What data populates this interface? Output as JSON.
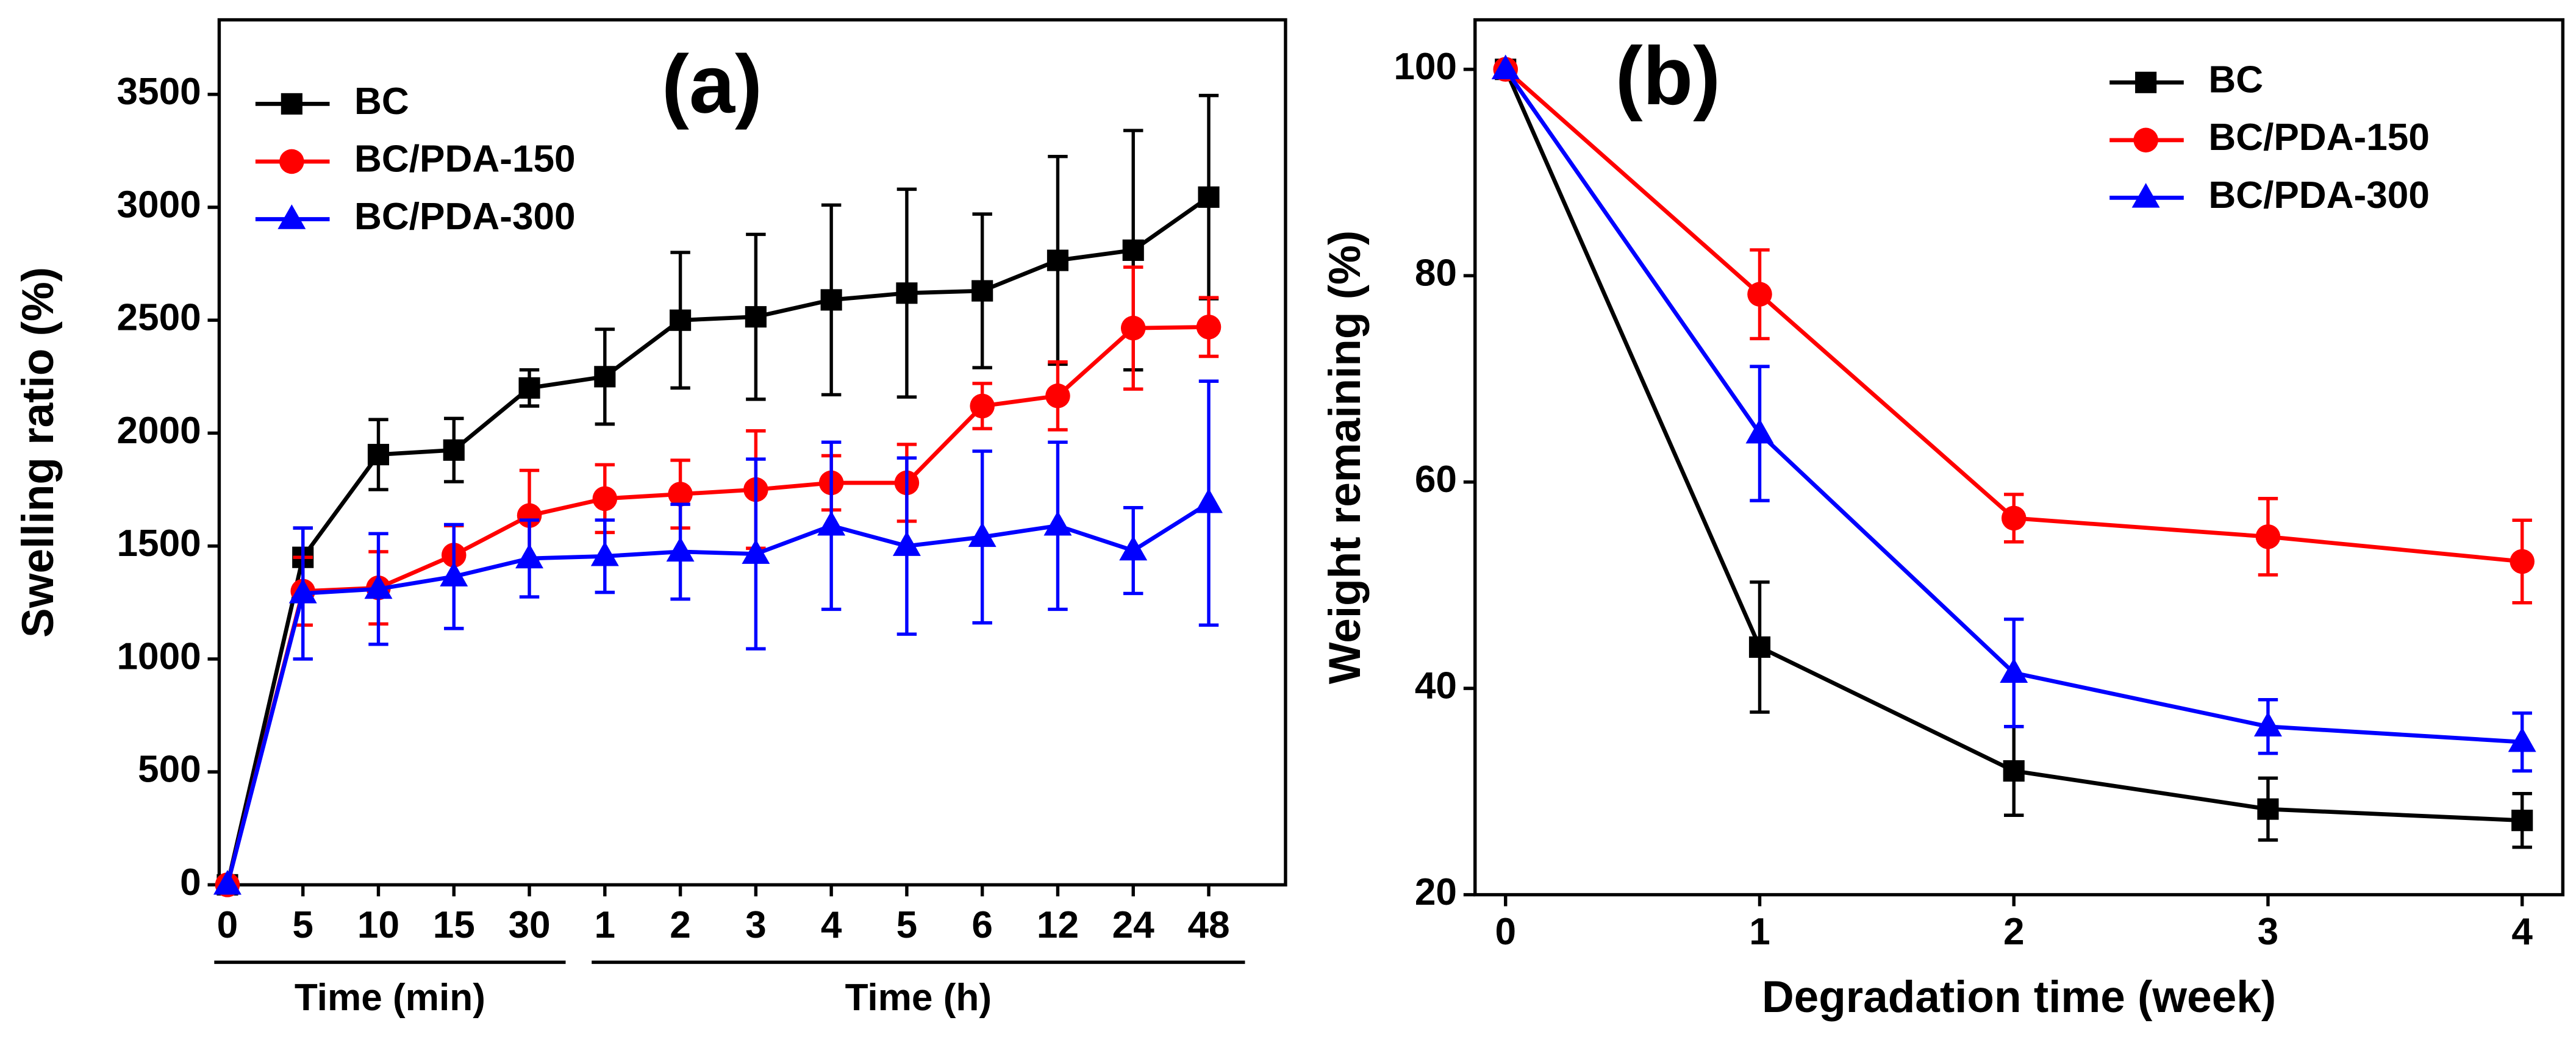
{
  "chart_data": [
    {
      "type": "line",
      "title": "(a)",
      "y_label": "Swelling ratio (%)",
      "categories": [
        "0",
        "5",
        "10",
        "15",
        "30",
        "1",
        "2",
        "3",
        "4",
        "5",
        "6",
        "12",
        "24",
        "48"
      ],
      "x_groups": [
        {
          "label": "Time (min)",
          "count": 5
        },
        {
          "label": "Time (h)",
          "count": 9
        }
      ],
      "ylim": [
        0,
        3830
      ],
      "yticks": [
        0,
        500,
        1000,
        1500,
        2000,
        2500,
        3000,
        3500
      ],
      "legend": "upper left",
      "series": [
        {
          "name": "BC",
          "color": "#000000",
          "marker": "square",
          "values": [
            0,
            1450,
            1905,
            1925,
            2200,
            2250,
            2500,
            2515,
            2590,
            2620,
            2630,
            2765,
            2810,
            3045
          ],
          "errors": [
            0,
            130,
            155,
            140,
            80,
            210,
            300,
            365,
            420,
            460,
            340,
            460,
            530,
            450
          ]
        },
        {
          "name": "BC/PDA-150",
          "color": "#ff0000",
          "marker": "circle",
          "values": [
            0,
            1300,
            1315,
            1460,
            1635,
            1710,
            1730,
            1750,
            1780,
            1780,
            2120,
            2165,
            2465,
            2470
          ],
          "errors": [
            0,
            150,
            160,
            130,
            200,
            150,
            150,
            260,
            120,
            170,
            100,
            150,
            270,
            130
          ]
        },
        {
          "name": "BC/PDA-300",
          "color": "#0000ff",
          "marker": "triangle",
          "values": [
            0,
            1290,
            1310,
            1365,
            1445,
            1455,
            1475,
            1465,
            1590,
            1500,
            1540,
            1590,
            1480,
            1690
          ],
          "errors": [
            0,
            290,
            245,
            230,
            170,
            160,
            210,
            420,
            370,
            390,
            380,
            370,
            190,
            540
          ]
        }
      ]
    },
    {
      "type": "line",
      "title": "(b)",
      "x_label": "Degradation time (week)",
      "y_label": "Weight remaining (%)",
      "x": [
        0,
        1,
        2,
        3,
        4
      ],
      "xlim": [
        -0.12,
        4.16
      ],
      "xticks": [
        0,
        1,
        2,
        3,
        4
      ],
      "ylim": [
        20,
        104.8
      ],
      "yticks": [
        20,
        40,
        60,
        80,
        100
      ],
      "legend": "upper right",
      "series": [
        {
          "name": "BC",
          "color": "#000000",
          "marker": "square",
          "values": [
            100,
            44,
            32,
            28.3,
            27.2
          ],
          "errors": [
            0,
            6.3,
            4.3,
            3,
            2.6
          ]
        },
        {
          "name": "BC/PDA-150",
          "color": "#ff0000",
          "marker": "circle",
          "values": [
            100,
            78.2,
            56.5,
            54.7,
            52.3
          ],
          "errors": [
            0,
            4.3,
            2.3,
            3.7,
            4
          ]
        },
        {
          "name": "BC/PDA-300",
          "color": "#0000ff",
          "marker": "triangle",
          "values": [
            100,
            64.7,
            41.5,
            36.3,
            34.8
          ],
          "errors": [
            0,
            6.5,
            5.2,
            2.6,
            2.8
          ]
        }
      ]
    }
  ]
}
